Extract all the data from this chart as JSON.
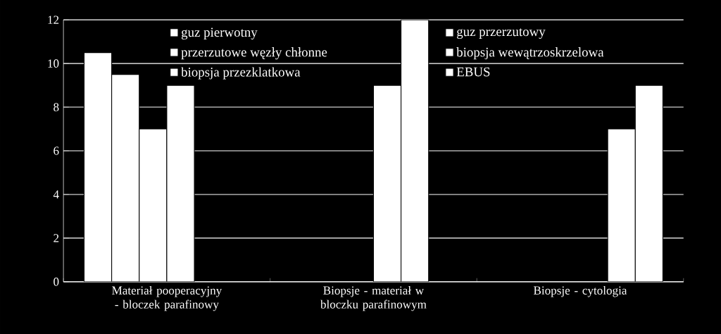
{
  "chart_data": {
    "type": "bar",
    "categories": [
      "Materiał pooperacyjny - bloczek parafinowy",
      "Biopsje - materiał w bloczku parafinowym",
      "Biopsje - cytologia"
    ],
    "series": [
      {
        "name": "guz pierwotny",
        "color": "#ffffff",
        "values": [
          10.5,
          null,
          null
        ]
      },
      {
        "name": "guz przerzutowy",
        "color": "#ffffff",
        "values": [
          9.5,
          null,
          null
        ]
      },
      {
        "name": "przerzutowe węzły chłonne",
        "color": "#ffffff",
        "values": [
          7,
          null,
          null
        ]
      },
      {
        "name": "biopsja wewątrzoskrzelowa",
        "color": "#ffffff",
        "values": [
          9,
          9,
          null
        ]
      },
      {
        "name": "biopsja przezklatkowa",
        "color": "#ffffff",
        "values": [
          null,
          12,
          7
        ]
      },
      {
        "name": "EBUS",
        "color": "#ffffff",
        "values": [
          null,
          null,
          9
        ]
      }
    ],
    "ylim": [
      0,
      12
    ],
    "yticks": [
      0,
      2,
      4,
      6,
      8,
      10,
      12
    ],
    "grid": "y",
    "legend": "top"
  }
}
